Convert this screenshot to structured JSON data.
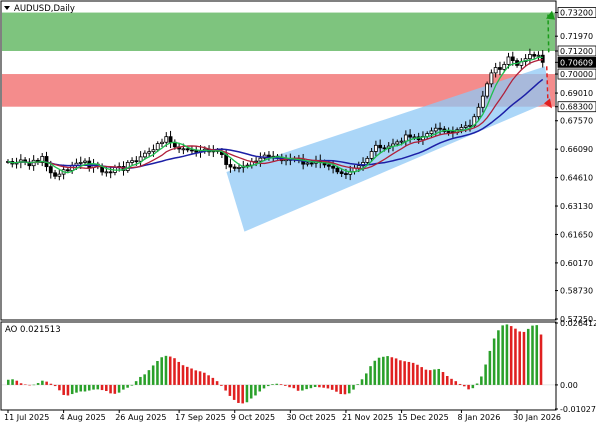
{
  "header": {
    "symbol_title": "AUDUSD,Daily",
    "dropdown_icon": "triangle-down-icon"
  },
  "oscillator": {
    "title": "AO 0.021513",
    "scale_top": "0.026412",
    "scale_zero": "0.00",
    "scale_bottom": "-0.010278"
  },
  "colors": {
    "background": "#ffffff",
    "bull_candle": "#000000",
    "bear_candle": "#000000",
    "resistance_zone": "#7ec47e",
    "support_zone": "#f48c8c",
    "channel": "#8fc8f5",
    "ma_fast": "#1fbf4f",
    "ma_mid": "#b0203a",
    "ma_slow": "#1c1fa6",
    "ao_up": "#2aa02a",
    "ao_down": "#e02020",
    "arrow_up": "#1a9a1a",
    "arrow_down": "#e02020"
  },
  "chart_data": {
    "type": "candlestick",
    "symbol": "AUDUSD",
    "timeframe": "Daily",
    "x_tick_labels": [
      "11 Jul 2025",
      "4 Aug 2025",
      "26 Aug 2025",
      "17 Sep 2025",
      "9 Oct 2025",
      "30 Oct 2025",
      "21 Nov 2025",
      "15 Dec 2025",
      "8 Jan 2026",
      "30 Jan 2026"
    ],
    "y_tick_labels": [
      "0.73200",
      "0.71970",
      "0.71200",
      "0.70609",
      "0.70000",
      "0.69010",
      "0.68300",
      "0.67570",
      "0.66090",
      "0.64610",
      "0.63130",
      "0.61650",
      "0.60170",
      "0.58730",
      "0.57250"
    ],
    "ylim": [
      0.5725,
      0.7375
    ],
    "highlighted_levels": [
      {
        "label": "0.73200",
        "role": "target"
      },
      {
        "label": "0.71200",
        "role": "resistance"
      },
      {
        "label": "0.70609",
        "role": "current"
      },
      {
        "label": "0.70000",
        "role": "support"
      },
      {
        "label": "0.68300",
        "role": "support"
      }
    ],
    "zones": [
      {
        "name": "resistance",
        "from": 0.712,
        "to": 0.732
      },
      {
        "name": "support",
        "from": 0.683,
        "to": 0.7
      }
    ],
    "channel": {
      "start": [
        0.649,
        0.618
      ],
      "end": [
        0.704,
        0.686
      ]
    },
    "close_series": [
      0.6545,
      0.6532,
      0.654,
      0.6553,
      0.6541,
      0.6523,
      0.6551,
      0.6539,
      0.6571,
      0.6518,
      0.6486,
      0.6468,
      0.6479,
      0.6502,
      0.6498,
      0.6525,
      0.6536,
      0.654,
      0.6547,
      0.6513,
      0.6531,
      0.6517,
      0.649,
      0.6491,
      0.6488,
      0.6513,
      0.6519,
      0.6498,
      0.654,
      0.6549,
      0.6546,
      0.6569,
      0.6588,
      0.6596,
      0.6606,
      0.6638,
      0.6645,
      0.6674,
      0.6645,
      0.6621,
      0.661,
      0.6611,
      0.6605,
      0.6603,
      0.6594,
      0.66,
      0.6609,
      0.6595,
      0.6603,
      0.6597,
      0.6581,
      0.6529,
      0.6516,
      0.6509,
      0.6514,
      0.6521,
      0.6526,
      0.6545,
      0.6547,
      0.6562,
      0.6578,
      0.657,
      0.6572,
      0.6567,
      0.6549,
      0.6556,
      0.6556,
      0.6558,
      0.6557,
      0.6531,
      0.6537,
      0.6536,
      0.6551,
      0.654,
      0.6527,
      0.652,
      0.651,
      0.6491,
      0.6482,
      0.6478,
      0.6492,
      0.6511,
      0.6523,
      0.654,
      0.6561,
      0.6597,
      0.6629,
      0.6616,
      0.6612,
      0.6625,
      0.6636,
      0.6647,
      0.6651,
      0.6683,
      0.6672,
      0.6673,
      0.6658,
      0.6675,
      0.669,
      0.6704,
      0.6718,
      0.6714,
      0.6701,
      0.67,
      0.6695,
      0.671,
      0.6722,
      0.673,
      0.6733,
      0.6778,
      0.6827,
      0.6885,
      0.6949,
      0.7006,
      0.7034,
      0.7024,
      0.705,
      0.7089,
      0.707,
      0.7045,
      0.7065,
      0.708,
      0.7102,
      0.7093,
      0.7098,
      0.7061
    ],
    "ao_values": [
      0.0022,
      0.0024,
      0.0018,
      0.0007,
      0.0002,
      -0.0002,
      0.0001,
      0.0008,
      0.0018,
      0.0014,
      0.0005,
      -0.0005,
      -0.0023,
      -0.0043,
      -0.0045,
      -0.0039,
      -0.0033,
      -0.0028,
      -0.0028,
      -0.0024,
      -0.002,
      -0.0019,
      -0.0022,
      -0.0026,
      -0.0036,
      -0.0038,
      -0.0033,
      -0.002,
      -0.0012,
      -0.0003,
      0.0016,
      0.0034,
      0.0045,
      0.0063,
      0.0083,
      0.0102,
      0.0118,
      0.0124,
      0.0121,
      0.0114,
      0.0098,
      0.0084,
      0.0077,
      0.007,
      0.0062,
      0.0058,
      0.0052,
      0.0041,
      0.003,
      0.0016,
      -0.0004,
      -0.0024,
      -0.0047,
      -0.0064,
      -0.0077,
      -0.0079,
      -0.0074,
      -0.0058,
      -0.0045,
      -0.0028,
      -0.0015,
      -0.0005,
      0.0003,
      0.0005,
      0.0003,
      -0.0004,
      -0.001,
      -0.0014,
      -0.0025,
      -0.0024,
      -0.0018,
      -0.0014,
      -0.0009,
      -0.001,
      -0.0012,
      -0.0015,
      -0.0021,
      -0.0029,
      -0.0039,
      -0.004,
      -0.0036,
      -0.002,
      0.0003,
      0.0024,
      0.0049,
      0.008,
      0.0103,
      0.0116,
      0.012,
      0.0123,
      0.0118,
      0.0113,
      0.0105,
      0.0101,
      0.0098,
      0.0094,
      0.0086,
      0.0076,
      0.0065,
      0.0063,
      0.0066,
      0.0068,
      0.0055,
      0.0038,
      0.0026,
      0.0016,
      0.0004,
      -0.0006,
      -0.0019,
      -0.0014,
      0.0006,
      0.0036,
      0.0087,
      0.0145,
      0.0198,
      0.0233,
      0.0254,
      0.0258,
      0.0251,
      0.024,
      0.0228,
      0.0226,
      0.0239,
      0.0253,
      0.0255,
      0.0215
    ],
    "ao_ylim": [
      -0.010278,
      0.026412
    ]
  }
}
